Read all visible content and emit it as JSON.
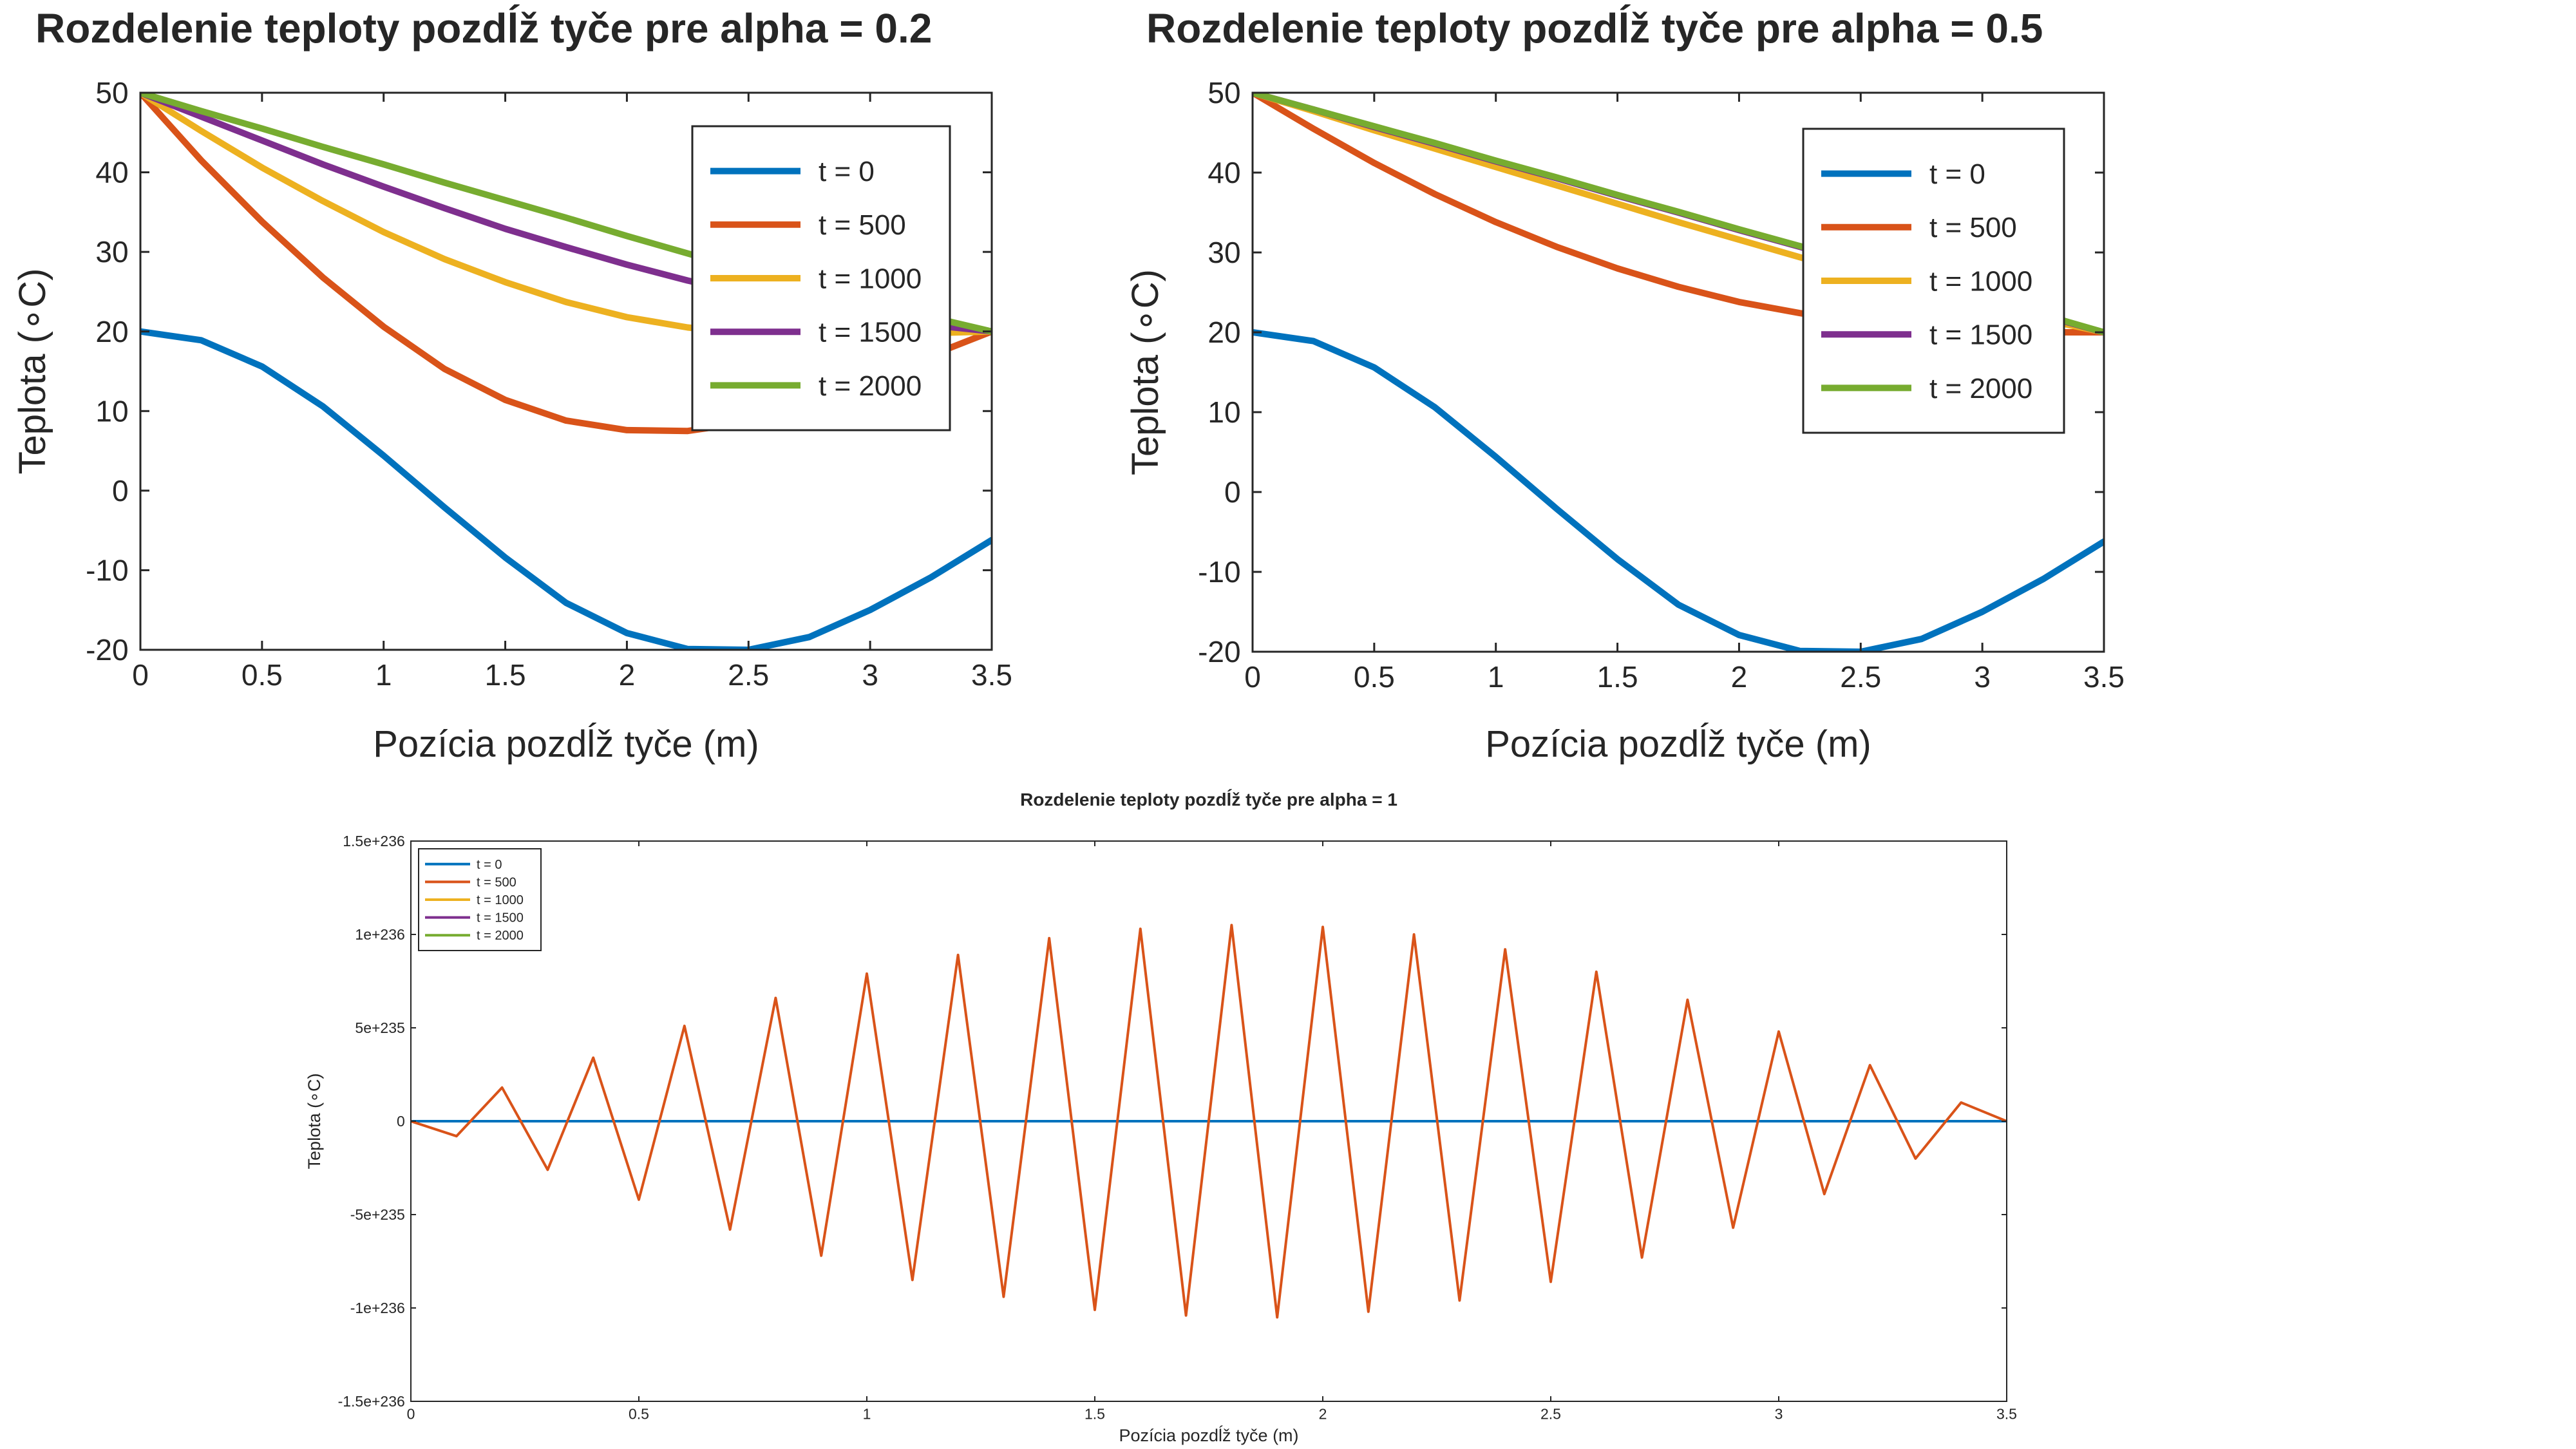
{
  "chart_data": [
    {
      "type": "line",
      "title": "Rozdelenie teploty pozdĺž tyče pre alpha = 0.2",
      "xlabel": "Pozícia pozdĺž tyče (m)",
      "ylabel": "Teplota (∘C)",
      "xlim": [
        0,
        3.5
      ],
      "ylim": [
        -20,
        50
      ],
      "xticks": [
        0,
        0.5,
        1,
        1.5,
        2,
        2.5,
        3,
        3.5
      ],
      "xtick_labels": [
        "0",
        "0.5",
        "1",
        "1.5",
        "2",
        "2.5",
        "3",
        "3.5"
      ],
      "yticks": [
        -20,
        -10,
        0,
        10,
        20,
        30,
        40,
        50
      ],
      "ytick_labels": [
        "-20",
        "-10",
        "0",
        "10",
        "20",
        "30",
        "40",
        "50"
      ],
      "grid": false,
      "legend_position": "top-right",
      "series": [
        {
          "name": "t = 0",
          "color": "#0072BD",
          "x": [
            0,
            0.25,
            0.5,
            0.75,
            1.0,
            1.25,
            1.5,
            1.75,
            2.0,
            2.25,
            2.5,
            2.75,
            3.0,
            3.25,
            3.5
          ],
          "y": [
            20,
            18.9,
            15.6,
            10.6,
            4.4,
            -2.1,
            -8.4,
            -14.1,
            -17.9,
            -19.9,
            -20.0,
            -18.4,
            -15.0,
            -10.9,
            -6.2
          ]
        },
        {
          "name": "t = 500",
          "color": "#D95319",
          "x": [
            0,
            0.25,
            0.5,
            0.75,
            1.0,
            1.25,
            1.5,
            1.75,
            2.0,
            2.25,
            2.5,
            2.75,
            3.0,
            3.25,
            3.5
          ],
          "y": [
            50,
            41.5,
            33.8,
            26.8,
            20.6,
            15.3,
            11.4,
            8.8,
            7.6,
            7.5,
            8.6,
            10.8,
            13.8,
            17.0,
            20
          ]
        },
        {
          "name": "t = 1000",
          "color": "#EDB120",
          "x": [
            0,
            0.25,
            0.5,
            0.75,
            1.0,
            1.25,
            1.5,
            1.75,
            2.0,
            2.25,
            2.5,
            2.75,
            3.0,
            3.25,
            3.5
          ],
          "y": [
            50,
            45.2,
            40.6,
            36.4,
            32.5,
            29.1,
            26.2,
            23.7,
            21.8,
            20.5,
            19.7,
            19.5,
            19.6,
            19.8,
            20
          ]
        },
        {
          "name": "t = 1500",
          "color": "#7E2F8E",
          "x": [
            0,
            0.25,
            0.5,
            0.75,
            1.0,
            1.25,
            1.5,
            1.75,
            2.0,
            2.25,
            2.5,
            2.75,
            3.0,
            3.25,
            3.5
          ],
          "y": [
            50,
            47.0,
            44.0,
            41.0,
            38.2,
            35.5,
            32.9,
            30.6,
            28.4,
            26.4,
            24.7,
            23.2,
            21.9,
            20.8,
            20
          ]
        },
        {
          "name": "t = 2000",
          "color": "#77AC30",
          "x": [
            0,
            0.25,
            0.5,
            0.75,
            1.0,
            1.25,
            1.5,
            1.75,
            2.0,
            2.25,
            2.5,
            2.75,
            3.0,
            3.25,
            3.5
          ],
          "y": [
            50,
            47.7,
            45.5,
            43.2,
            41.0,
            38.7,
            36.5,
            34.3,
            32.0,
            29.8,
            27.6,
            25.7,
            23.6,
            21.8,
            20
          ]
        }
      ]
    },
    {
      "type": "line",
      "title": "Rozdelenie teploty pozdĺž tyče pre alpha = 0.5",
      "xlabel": "Pozícia pozdĺž tyče (m)",
      "ylabel": "Teplota (∘C)",
      "xlim": [
        0,
        3.5
      ],
      "ylim": [
        -20,
        50
      ],
      "xticks": [
        0,
        0.5,
        1,
        1.5,
        2,
        2.5,
        3,
        3.5
      ],
      "xtick_labels": [
        "0",
        "0.5",
        "1",
        "1.5",
        "2",
        "2.5",
        "3",
        "3.5"
      ],
      "yticks": [
        -20,
        -10,
        0,
        10,
        20,
        30,
        40,
        50
      ],
      "ytick_labels": [
        "-20",
        "-10",
        "0",
        "10",
        "20",
        "30",
        "40",
        "50"
      ],
      "grid": false,
      "legend_position": "top-right",
      "series": [
        {
          "name": "t = 0",
          "color": "#0072BD",
          "x": [
            0,
            0.25,
            0.5,
            0.75,
            1.0,
            1.25,
            1.5,
            1.75,
            2.0,
            2.25,
            2.5,
            2.75,
            3.0,
            3.25,
            3.5
          ],
          "y": [
            20,
            18.9,
            15.6,
            10.6,
            4.4,
            -2.1,
            -8.4,
            -14.1,
            -17.9,
            -19.9,
            -20.0,
            -18.4,
            -15.0,
            -10.9,
            -6.2
          ]
        },
        {
          "name": "t = 500",
          "color": "#D95319",
          "x": [
            0,
            0.25,
            0.5,
            0.75,
            1.0,
            1.25,
            1.5,
            1.75,
            2.0,
            2.25,
            2.5,
            2.75,
            3.0,
            3.25,
            3.5
          ],
          "y": [
            50,
            45.5,
            41.2,
            37.3,
            33.8,
            30.7,
            28.0,
            25.7,
            23.8,
            22.4,
            21.2,
            20.5,
            20.1,
            20.0,
            20
          ]
        },
        {
          "name": "t = 1000",
          "color": "#EDB120",
          "x": [
            0,
            0.25,
            0.5,
            0.75,
            1.0,
            1.25,
            1.5,
            1.75,
            2.0,
            2.25,
            2.5,
            2.75,
            3.0,
            3.25,
            3.5
          ],
          "y": [
            50,
            47.7,
            45.3,
            43.0,
            40.7,
            38.4,
            36.1,
            33.8,
            31.6,
            29.4,
            27.3,
            25.3,
            23.4,
            21.6,
            20
          ]
        },
        {
          "name": "t = 1500",
          "color": "#7E2F8E",
          "x": [
            0,
            0.25,
            0.5,
            0.75,
            1.0,
            1.25,
            1.5,
            1.75,
            2.0,
            2.25,
            2.5,
            2.75,
            3.0,
            3.25,
            3.5
          ],
          "y": [
            50,
            47.9,
            45.7,
            43.6,
            41.4,
            39.3,
            37.1,
            35.0,
            32.8,
            30.7,
            28.5,
            26.4,
            24.3,
            22.1,
            20
          ]
        },
        {
          "name": "t = 2000",
          "color": "#77AC30",
          "x": [
            0,
            0.25,
            0.5,
            0.75,
            1.0,
            1.25,
            1.5,
            1.75,
            2.0,
            2.25,
            2.5,
            2.75,
            3.0,
            3.25,
            3.5
          ],
          "y": [
            50,
            47.9,
            45.8,
            43.7,
            41.5,
            39.4,
            37.2,
            35.1,
            32.9,
            30.8,
            28.6,
            26.5,
            24.3,
            22.2,
            20
          ]
        }
      ]
    },
    {
      "type": "line",
      "title": "Rozdelenie teploty pozdĺž tyče pre alpha = 1",
      "xlabel": "Pozícia pozdĺž tyče (m)",
      "ylabel": "Teplota (∘C)",
      "xlim": [
        0,
        3.5
      ],
      "ylim": [
        -1.5e+236,
        1.5e+236
      ],
      "xticks": [
        0,
        0.5,
        1,
        1.5,
        2,
        2.5,
        3,
        3.5
      ],
      "xtick_labels": [
        "0",
        "0.5",
        "1",
        "1.5",
        "2",
        "2.5",
        "3",
        "3.5"
      ],
      "yticks": [
        -1.5e+236,
        -1e+236,
        -5e+235,
        0,
        5e+235,
        1e+236,
        1.5e+236
      ],
      "ytick_labels": [
        "-1.5e+236",
        "-1e+236",
        "-5e+235",
        "0",
        "5e+235",
        "1e+236",
        "1.5e+236"
      ],
      "grid": false,
      "legend_position": "top-left",
      "series": [
        {
          "name": "t = 0",
          "color": "#0072BD",
          "x": [
            0,
            3.5
          ],
          "y": [
            0,
            0
          ]
        },
        {
          "name": "t = 500",
          "color": "#D95319",
          "x": [
            0,
            0.1,
            0.2,
            0.3,
            0.4,
            0.5,
            0.6,
            0.7,
            0.8,
            0.9,
            1.0,
            1.1,
            1.2,
            1.3,
            1.4,
            1.5,
            1.6,
            1.7,
            1.8,
            1.9,
            2.0,
            2.1,
            2.2,
            2.3,
            2.4,
            2.5,
            2.6,
            2.7,
            2.8,
            2.9,
            3.0,
            3.1,
            3.2,
            3.3,
            3.4,
            3.5
          ],
          "y": [
            0,
            -8e+234,
            1.8e+235,
            -2.6e+235,
            3.4e+235,
            -4.2e+235,
            5.1e+235,
            -5.8e+235,
            6.6e+235,
            -7.2e+235,
            7.9e+235,
            -8.5e+235,
            8.9e+235,
            -9.4e+235,
            9.8e+235,
            -1.01e+236,
            1.03e+236,
            -1.04e+236,
            1.05e+236,
            -1.05e+236,
            1.04e+236,
            -1.02e+236,
            1e+236,
            -9.6e+235,
            9.2e+235,
            -8.6e+235,
            8e+235,
            -7.3e+235,
            6.5e+235,
            -5.7e+235,
            4.8e+235,
            -3.9e+235,
            3e+235,
            -2e+235,
            1e+235,
            0
          ]
        },
        {
          "name": "t = 1000",
          "color": "#EDB120",
          "x": [],
          "y": []
        },
        {
          "name": "t = 1500",
          "color": "#7E2F8E",
          "x": [],
          "y": []
        },
        {
          "name": "t = 2000",
          "color": "#77AC30",
          "x": [],
          "y": []
        }
      ]
    }
  ]
}
